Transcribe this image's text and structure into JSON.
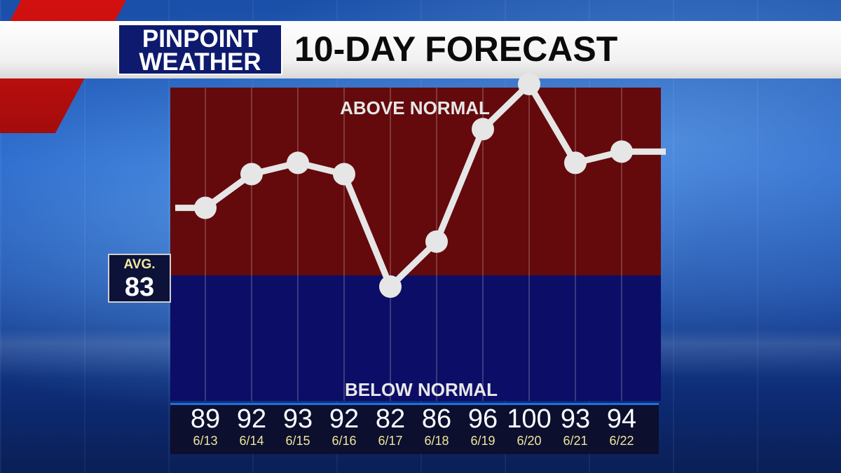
{
  "header": {
    "logo_line1": "PINPOINT",
    "logo_line2": "WEATHER",
    "title": "10-DAY FORECAST"
  },
  "avg": {
    "label": "AVG.",
    "value": "83"
  },
  "colors": {
    "above": "#640a0c",
    "below": "#0c0d66",
    "line": "#e6e6e6",
    "date_text": "#f0e59a"
  },
  "chart_data": {
    "type": "line",
    "zone_labels": {
      "above": "ABOVE NORMAL",
      "below": "BELOW NORMAL"
    },
    "baseline_value": 83,
    "categories": [
      "6/13",
      "6/14",
      "6/15",
      "6/16",
      "6/17",
      "6/18",
      "6/19",
      "6/20",
      "6/21",
      "6/22"
    ],
    "series": [
      {
        "values": [
          89,
          92,
          93,
          92,
          82,
          86,
          96,
          100,
          93,
          94
        ]
      }
    ],
    "temps_text": [
      "89",
      "92",
      "93",
      "92",
      "82",
      "86",
      "96",
      "100",
      "93",
      "94"
    ]
  }
}
